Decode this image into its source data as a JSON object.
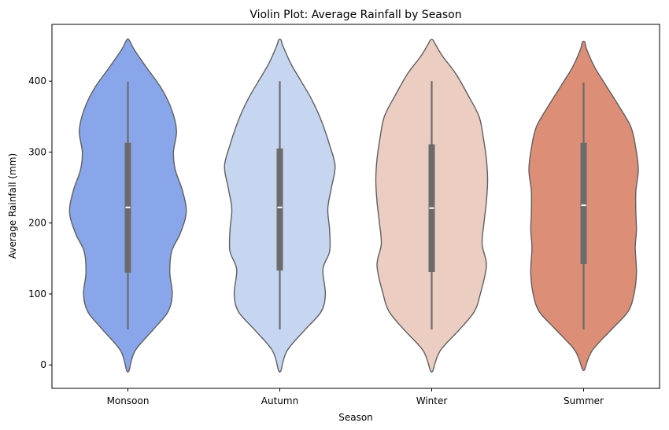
{
  "chart_data": {
    "type": "violin",
    "title": "Violin Plot: Average Rainfall by Season",
    "xlabel": "Season",
    "ylabel": "Average Rainfall (mm)",
    "ylim": [
      -33,
      480
    ],
    "yticks": [
      0,
      100,
      200,
      300,
      400
    ],
    "grid": false,
    "categories": [
      "Monsoon",
      "Autumn",
      "Winter",
      "Summer"
    ],
    "series": [
      {
        "category": "Monsoon",
        "color": "#89a6ea",
        "min": 50,
        "q1": 130,
        "median": 222,
        "q3": 313,
        "max": 399,
        "density": [
          [
            -8,
            0.02
          ],
          [
            20,
            0.12
          ],
          [
            50,
            0.42
          ],
          [
            75,
            0.66
          ],
          [
            100,
            0.73
          ],
          [
            130,
            0.69
          ],
          [
            160,
            0.72
          ],
          [
            185,
            0.86
          ],
          [
            215,
            0.96
          ],
          [
            245,
            0.9
          ],
          [
            275,
            0.78
          ],
          [
            300,
            0.75
          ],
          [
            330,
            0.8
          ],
          [
            360,
            0.72
          ],
          [
            390,
            0.55
          ],
          [
            420,
            0.3
          ],
          [
            445,
            0.1
          ],
          [
            458,
            0.02
          ]
        ]
      },
      {
        "category": "Autumn",
        "color": "#c6d5f0",
        "min": 50,
        "q1": 133,
        "median": 222,
        "q3": 305,
        "max": 400,
        "density": [
          [
            -8,
            0.02
          ],
          [
            20,
            0.12
          ],
          [
            50,
            0.42
          ],
          [
            75,
            0.68
          ],
          [
            100,
            0.75
          ],
          [
            135,
            0.71
          ],
          [
            160,
            0.82
          ],
          [
            190,
            0.82
          ],
          [
            220,
            0.79
          ],
          [
            250,
            0.85
          ],
          [
            280,
            0.91
          ],
          [
            310,
            0.82
          ],
          [
            345,
            0.68
          ],
          [
            375,
            0.52
          ],
          [
            400,
            0.35
          ],
          [
            425,
            0.18
          ],
          [
            450,
            0.05
          ],
          [
            458,
            0.02
          ]
        ]
      },
      {
        "category": "Winter",
        "color": "#eccdc1",
        "min": 50,
        "q1": 131,
        "median": 221,
        "q3": 311,
        "max": 400,
        "density": [
          [
            -8,
            0.02
          ],
          [
            20,
            0.14
          ],
          [
            50,
            0.46
          ],
          [
            75,
            0.7
          ],
          [
            100,
            0.8
          ],
          [
            140,
            0.9
          ],
          [
            170,
            0.83
          ],
          [
            200,
            0.86
          ],
          [
            230,
            0.9
          ],
          [
            260,
            0.92
          ],
          [
            290,
            0.9
          ],
          [
            320,
            0.85
          ],
          [
            350,
            0.78
          ],
          [
            380,
            0.6
          ],
          [
            410,
            0.4
          ],
          [
            435,
            0.18
          ],
          [
            452,
            0.06
          ],
          [
            458,
            0.02
          ]
        ]
      },
      {
        "category": "Summer",
        "color": "#dc8e77",
        "min": 50,
        "q1": 142,
        "median": 225,
        "q3": 313,
        "max": 398,
        "density": [
          [
            -6,
            0.02
          ],
          [
            20,
            0.14
          ],
          [
            50,
            0.46
          ],
          [
            75,
            0.73
          ],
          [
            100,
            0.83
          ],
          [
            130,
            0.87
          ],
          [
            165,
            0.85
          ],
          [
            190,
            0.87
          ],
          [
            215,
            0.86
          ],
          [
            245,
            0.86
          ],
          [
            275,
            0.9
          ],
          [
            305,
            0.86
          ],
          [
            335,
            0.78
          ],
          [
            365,
            0.58
          ],
          [
            395,
            0.36
          ],
          [
            420,
            0.18
          ],
          [
            445,
            0.05
          ],
          [
            455,
            0.02
          ]
        ]
      }
    ]
  }
}
